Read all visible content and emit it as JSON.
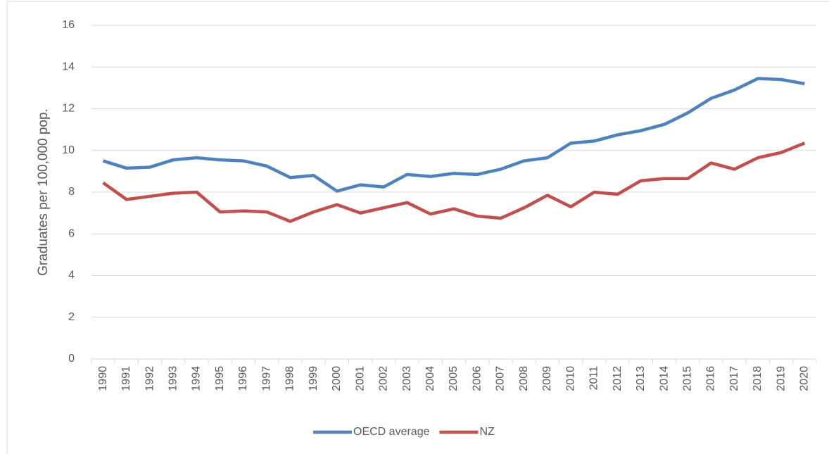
{
  "chart_data": {
    "type": "line",
    "y_label": "Graduates per 100,000 pop.",
    "categories": [
      "1990",
      "1991",
      "1992",
      "1993",
      "1994",
      "1995",
      "1996",
      "1997",
      "1998",
      "1999",
      "2000",
      "2001",
      "2002",
      "2003",
      "2004",
      "2005",
      "2006",
      "2007",
      "2008",
      "2009",
      "2010",
      "2011",
      "2012",
      "2013",
      "2014",
      "2015",
      "2016",
      "2017",
      "2018",
      "2019",
      "2020"
    ],
    "series": [
      {
        "name": "OECD average",
        "color": "#4f81bd",
        "values": [
          9.5,
          9.15,
          9.2,
          9.55,
          9.65,
          9.55,
          9.5,
          9.25,
          8.7,
          8.8,
          8.05,
          8.35,
          8.25,
          8.85,
          8.75,
          8.9,
          8.85,
          9.1,
          9.5,
          9.65,
          10.35,
          10.45,
          10.75,
          10.95,
          11.25,
          11.8,
          12.5,
          12.9,
          13.45,
          13.4,
          13.2
        ]
      },
      {
        "name": "NZ",
        "color": "#c0504d",
        "values": [
          8.45,
          7.65,
          7.8,
          7.95,
          8.0,
          7.05,
          7.1,
          7.05,
          6.6,
          7.05,
          7.4,
          7.0,
          7.25,
          7.5,
          6.95,
          7.2,
          6.85,
          6.75,
          7.25,
          7.85,
          7.3,
          8.0,
          7.9,
          8.55,
          8.65,
          8.65,
          9.4,
          9.1,
          9.65,
          9.9,
          10.35
        ]
      }
    ],
    "ylim": [
      0,
      16
    ],
    "yticks": [
      0,
      2,
      4,
      6,
      8,
      10,
      12,
      14,
      16
    ],
    "grid": true,
    "legend": "bottom"
  }
}
